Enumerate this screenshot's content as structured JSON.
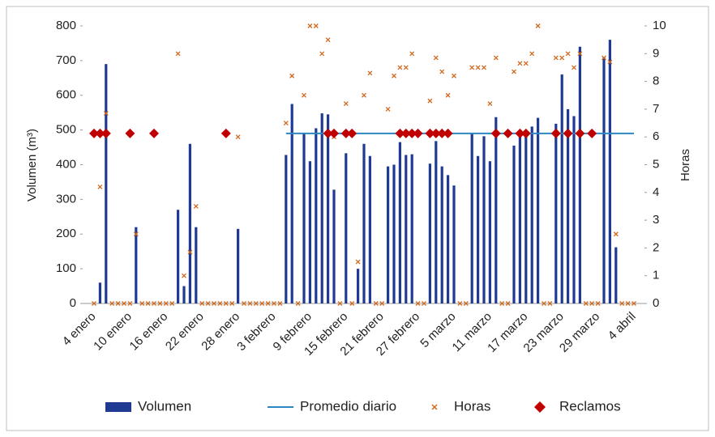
{
  "chart_data": {
    "type": "combo",
    "ylabel": "Volumen (m³)",
    "y2label": "Horas",
    "categories": [
      "4 enero",
      null,
      null,
      null,
      null,
      null,
      "10 enero",
      null,
      null,
      null,
      null,
      null,
      "16 enero",
      null,
      null,
      null,
      null,
      null,
      "22 enero",
      null,
      null,
      null,
      null,
      null,
      "28 enero",
      null,
      null,
      null,
      null,
      null,
      "3 febrero",
      null,
      null,
      null,
      null,
      null,
      "9 febrero",
      null,
      null,
      null,
      null,
      null,
      "15 febrero",
      null,
      null,
      null,
      null,
      null,
      "21 febrero",
      null,
      null,
      null,
      null,
      null,
      "27 febrero",
      null,
      null,
      null,
      null,
      null,
      "5 marzo",
      null,
      null,
      null,
      null,
      null,
      "11 marzo",
      null,
      null,
      null,
      null,
      null,
      "17 marzo",
      null,
      null,
      null,
      null,
      null,
      "23 marzo",
      null,
      null,
      null,
      null,
      null,
      "29 marzo",
      null,
      null,
      null,
      null,
      null,
      "4 abril"
    ],
    "ylim": [
      0,
      800
    ],
    "yticks": [
      0,
      100,
      200,
      300,
      400,
      500,
      600,
      700,
      800
    ],
    "y2lim": [
      0,
      10
    ],
    "y2ticks": [
      0,
      1,
      2,
      3,
      4,
      5,
      6,
      7,
      8,
      9,
      10
    ],
    "legend": "bottom",
    "series": [
      {
        "name": "Volumen",
        "type": "bar",
        "color": "#1f3a93",
        "values": [
          0,
          60,
          690,
          0,
          0,
          0,
          0,
          220,
          0,
          0,
          0,
          0,
          0,
          0,
          270,
          50,
          460,
          220,
          0,
          0,
          0,
          0,
          0,
          0,
          215,
          0,
          0,
          0,
          0,
          0,
          0,
          0,
          428,
          575,
          0,
          490,
          410,
          505,
          548,
          545,
          328,
          0,
          433,
          0,
          100,
          460,
          425,
          0,
          0,
          395,
          400,
          465,
          428,
          430,
          0,
          0,
          403,
          468,
          395,
          370,
          340,
          0,
          0,
          490,
          425,
          482,
          410,
          537,
          0,
          0,
          455,
          490,
          490,
          510,
          535,
          0,
          0,
          518,
          660,
          560,
          540,
          740,
          0,
          0,
          0,
          710,
          760,
          162,
          0,
          0,
          0
        ]
      },
      {
        "name": "Promedio diario",
        "type": "line",
        "color": "#2e86c1",
        "values": [
          null,
          null,
          null,
          null,
          null,
          null,
          null,
          null,
          null,
          null,
          null,
          null,
          null,
          null,
          null,
          null,
          null,
          null,
          null,
          null,
          null,
          null,
          null,
          null,
          null,
          null,
          null,
          null,
          null,
          null,
          null,
          null,
          490,
          490,
          490,
          490,
          490,
          490,
          490,
          490,
          490,
          490,
          490,
          490,
          490,
          490,
          490,
          490,
          490,
          490,
          490,
          490,
          490,
          490,
          490,
          490,
          490,
          490,
          490,
          490,
          490,
          490,
          490,
          490,
          490,
          490,
          490,
          490,
          490,
          490,
          490,
          490,
          490,
          490,
          490,
          490,
          490,
          490,
          490,
          490,
          490,
          490,
          490,
          490,
          490,
          490,
          490,
          490,
          490,
          490,
          490
        ]
      },
      {
        "name": "Horas",
        "type": "scatter",
        "marker": "x",
        "axis": "y2",
        "color": "#d2691e",
        "values": [
          0,
          4.2,
          6.85,
          0,
          0,
          0,
          0,
          2.5,
          0,
          0,
          0,
          0,
          0,
          0,
          9,
          1,
          1.85,
          3.5,
          0,
          0,
          0,
          0,
          0,
          0,
          6,
          0,
          0,
          0,
          0,
          0,
          0,
          0,
          6.5,
          8.2,
          0,
          7.5,
          10,
          10,
          9,
          9.5,
          6,
          0,
          7.2,
          0,
          1.5,
          7.5,
          8.3,
          0,
          0,
          7,
          8.2,
          8.5,
          8.5,
          9,
          0,
          0,
          7.3,
          8.85,
          8.35,
          7.5,
          8.2,
          0,
          0,
          8.5,
          8.5,
          8.5,
          7.2,
          8.85,
          0,
          0,
          8.35,
          8.65,
          8.65,
          9,
          10,
          0,
          0,
          8.85,
          8.85,
          9,
          8.5,
          9,
          0,
          0,
          0,
          8.85,
          8.7,
          2.5,
          0,
          0,
          0
        ]
      },
      {
        "name": "Reclamos",
        "type": "scatter",
        "marker": "diamond",
        "color": "#c00000",
        "values": [
          490,
          490,
          490,
          null,
          null,
          null,
          490,
          null,
          null,
          null,
          490,
          null,
          null,
          null,
          null,
          null,
          null,
          null,
          null,
          null,
          null,
          null,
          490,
          null,
          null,
          null,
          null,
          null,
          null,
          null,
          null,
          null,
          null,
          null,
          null,
          null,
          null,
          null,
          null,
          490,
          490,
          null,
          490,
          490,
          null,
          null,
          null,
          null,
          null,
          null,
          null,
          490,
          490,
          490,
          490,
          null,
          490,
          490,
          490,
          490,
          null,
          null,
          null,
          null,
          null,
          null,
          null,
          490,
          null,
          490,
          null,
          490,
          490,
          null,
          null,
          null,
          null,
          490,
          null,
          490,
          null,
          490,
          null,
          490,
          null,
          null,
          null,
          null,
          null,
          null,
          null
        ]
      }
    ]
  }
}
